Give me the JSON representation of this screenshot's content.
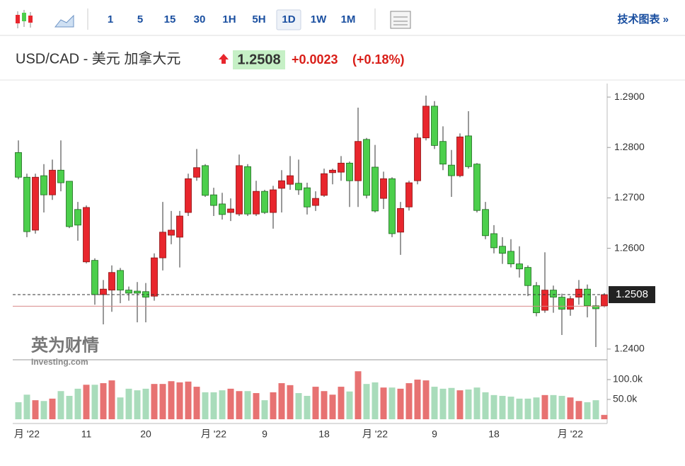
{
  "toolbar": {
    "intervals": [
      "1",
      "5",
      "15",
      "30",
      "1H",
      "5H",
      "1D",
      "1W",
      "1M"
    ],
    "selected": "1D",
    "link": "技术图表 »"
  },
  "header": {
    "title": "USD/CAD - 美元 加拿大元",
    "price": "1.2508",
    "change": "+0.0023",
    "change_percent": "(+0.18%)"
  },
  "logo": {
    "name": "英为财情",
    "site": "Investing.com"
  },
  "chart_data": {
    "type": "candlestick",
    "categories": [
      null,
      "月 '22",
      null,
      null,
      null,
      null,
      null,
      null,
      "11",
      null,
      null,
      null,
      null,
      null,
      null,
      "20",
      null,
      null,
      null,
      null,
      null,
      null,
      null,
      "月 '22",
      null,
      null,
      null,
      null,
      null,
      "9",
      null,
      null,
      null,
      null,
      null,
      null,
      "18",
      null,
      null,
      null,
      null,
      null,
      "月 '22",
      null,
      null,
      null,
      null,
      null,
      null,
      "9",
      null,
      null,
      null,
      null,
      null,
      null,
      "18",
      null,
      null,
      null,
      null,
      null,
      null,
      null,
      null,
      "月 '22",
      null,
      null,
      null,
      null
    ],
    "open": [
      1.279,
      1.2741,
      1.2636,
      1.2744,
      1.2706,
      1.2755,
      1.2733,
      1.2677,
      1.2573,
      1.2576,
      1.2508,
      1.2517,
      1.2556,
      1.2517,
      1.2515,
      1.2514,
      1.2505,
      1.2581,
      1.2626,
      1.2622,
      1.2671,
      1.2741,
      1.2764,
      1.2706,
      1.2688,
      1.2671,
      1.2668,
      1.2762,
      1.2668,
      1.2713,
      1.2671,
      1.2719,
      1.2727,
      1.2729,
      1.272,
      1.2685,
      1.2705,
      1.275,
      1.2751,
      1.2769,
      1.2734,
      1.2816,
      1.2761,
      1.2699,
      1.2738,
      1.2632,
      1.2682,
      1.2734,
      1.2819,
      1.2882,
      1.2812,
      1.2765,
      1.2744,
      1.2823,
      1.2767,
      1.2677,
      1.2629,
      1.2604,
      1.2594,
      1.2569,
      1.2562,
      1.2526,
      1.2477,
      1.2517,
      1.2503,
      1.2479,
      1.2503,
      1.2519,
      1.2486,
      1.2486
    ],
    "high": [
      1.2814,
      1.2748,
      1.2748,
      1.2767,
      1.2776,
      1.2814,
      1.2733,
      1.2692,
      1.2685,
      1.258,
      1.2537,
      1.2566,
      1.2561,
      1.2524,
      1.2533,
      1.2531,
      1.259,
      1.2692,
      1.2674,
      1.2674,
      1.2748,
      1.2797,
      1.2767,
      1.272,
      1.271,
      1.2699,
      1.2786,
      1.2767,
      1.2734,
      1.2716,
      1.2724,
      1.2755,
      1.2783,
      1.2776,
      1.273,
      1.2713,
      1.2758,
      1.2758,
      1.2783,
      1.2772,
      1.2879,
      1.2819,
      1.2805,
      1.2752,
      1.2741,
      1.2692,
      1.2734,
      1.2828,
      1.2903,
      1.2892,
      1.2842,
      1.2795,
      1.2828,
      1.2872,
      1.2769,
      1.2692,
      1.2646,
      1.2622,
      1.2618,
      1.2604,
      1.2566,
      1.2533,
      1.2592,
      1.2526,
      1.251,
      1.2505,
      1.2537,
      1.2528,
      1.2505,
      1.2511
    ],
    "low": [
      1.2737,
      1.2622,
      1.2629,
      1.2671,
      1.2696,
      1.2713,
      1.264,
      1.2615,
      1.257,
      1.2488,
      1.2449,
      1.2474,
      1.2491,
      1.2496,
      1.2453,
      1.2453,
      1.2496,
      1.2556,
      1.2608,
      1.2562,
      1.2664,
      1.2734,
      1.2702,
      1.2664,
      1.2657,
      1.2654,
      1.2664,
      1.2664,
      1.2664,
      1.2668,
      1.2639,
      1.2671,
      1.2716,
      1.2706,
      1.2667,
      1.2674,
      1.2702,
      1.2727,
      1.2734,
      1.2682,
      1.2682,
      1.2699,
      1.2671,
      1.2678,
      1.2622,
      1.2587,
      1.2675,
      1.2727,
      1.2814,
      1.2797,
      1.2755,
      1.2702,
      1.2741,
      1.2758,
      1.2671,
      1.2618,
      1.259,
      1.2569,
      1.2562,
      1.2542,
      1.2505,
      1.2465,
      1.2472,
      1.2472,
      1.2428,
      1.2466,
      1.2488,
      1.2463,
      1.2404,
      1.2483
    ],
    "close": [
      1.2741,
      1.2633,
      1.2741,
      1.2706,
      1.2755,
      1.273,
      1.2643,
      1.2646,
      1.2681,
      1.2508,
      1.2519,
      1.2552,
      1.2517,
      1.2511,
      1.2511,
      1.2503,
      1.2581,
      1.2632,
      1.2636,
      1.2664,
      1.2738,
      1.276,
      1.2705,
      1.2685,
      1.2667,
      1.2678,
      1.2764,
      1.2668,
      1.2713,
      1.2671,
      1.2716,
      1.2734,
      1.2744,
      1.2716,
      1.2682,
      1.2699,
      1.2748,
      1.2755,
      1.2769,
      1.2734,
      1.2812,
      1.2705,
      1.2674,
      1.2738,
      1.2629,
      1.2679,
      1.273,
      1.2819,
      1.2882,
      1.2804,
      1.2767,
      1.2744,
      1.2821,
      1.2762,
      1.2675,
      1.2625,
      1.2601,
      1.259,
      1.2569,
      1.2559,
      1.2526,
      1.2472,
      1.2517,
      1.2503,
      1.2479,
      1.25,
      1.2519,
      1.2486,
      1.248,
      1.2508
    ],
    "volume": [
      43000,
      62000,
      48000,
      46000,
      52000,
      71000,
      59000,
      77000,
      87000,
      87000,
      91000,
      98000,
      55000,
      77000,
      73000,
      77000,
      89000,
      89000,
      96000,
      93000,
      95000,
      82000,
      68000,
      68000,
      73000,
      77000,
      71000,
      71000,
      66000,
      48000,
      68000,
      91000,
      86000,
      66000,
      59000,
      82000,
      71000,
      62000,
      82000,
      70000,
      121000,
      89000,
      93000,
      80000,
      80000,
      77000,
      91000,
      100000,
      98000,
      82000,
      77000,
      79000,
      73000,
      75000,
      80000,
      68000,
      61000,
      59000,
      57000,
      52000,
      52000,
      55000,
      61000,
      61000,
      59000,
      55000,
      46000,
      43000,
      48000,
      11000
    ],
    "up_color": "#e8262d",
    "down_color": "#4ccf4c",
    "up_volume_color": "#e77272",
    "down_volume_color": "#a9dcbb",
    "ylim": [
      1.2383,
      1.2924
    ],
    "yticks": [
      {
        "value": 1.24,
        "label": "1.2400"
      },
      {
        "value": 1.26,
        "label": "1.2600"
      },
      {
        "value": 1.27,
        "label": "1.2700"
      },
      {
        "value": 1.28,
        "label": "1.2800"
      },
      {
        "value": 1.29,
        "label": "1.2900"
      }
    ],
    "y2lim": [
      0,
      150000
    ],
    "y2ticks": [
      {
        "value": 50000,
        "label": "50.0k"
      },
      {
        "value": 100000,
        "label": "100.0k"
      }
    ],
    "last_price": 1.2508,
    "prev_close": 1.2485
  }
}
